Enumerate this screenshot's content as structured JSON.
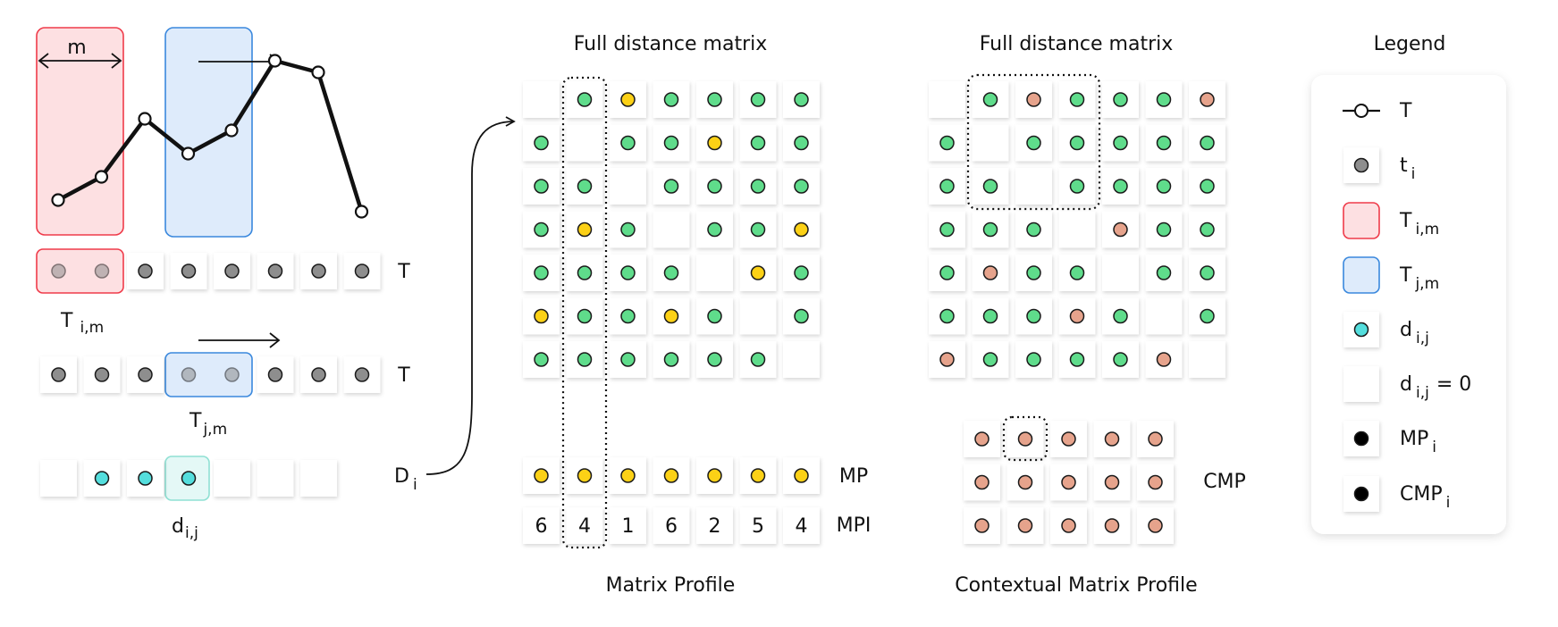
{
  "colors": {
    "green": "#5fdc8b",
    "yellow": "#fcd116",
    "salmon": "#e6a38c",
    "gray": "#8e8e8e",
    "cyan": "#54dedd",
    "red_fill": "#fde0e2",
    "red_border": "#ef3b4a",
    "blue_fill": "#deebfb",
    "blue_border": "#3a88dd",
    "teal_border": "#8fe0d3"
  },
  "left_panel": {
    "m_label": "m",
    "row1_label": "T",
    "row2_label": "T",
    "sub_tim": {
      "base": "T",
      "sub": "i,m"
    },
    "sub_tjm": {
      "base": "T",
      "sub": "j,m"
    },
    "sub_dij": {
      "base": "d",
      "sub": "i,j"
    },
    "di_label": {
      "base": "D",
      "sub": "i"
    },
    "series_values": [
      1,
      2,
      4.5,
      3,
      4,
      7,
      6.5,
      0.5
    ],
    "row1_cells": [
      "gray-faded",
      "gray-faded",
      "gray",
      "gray",
      "gray",
      "gray",
      "gray",
      "gray"
    ],
    "row2_cells": [
      "gray",
      "gray",
      "gray",
      "gray-faded",
      "gray-faded",
      "gray",
      "gray",
      "gray"
    ],
    "row3_cells": [
      "empty",
      "cyan",
      "cyan",
      "cyan",
      "empty",
      "empty",
      "empty"
    ]
  },
  "matrix_profile": {
    "title": "Full distance matrix",
    "caption": "Matrix Profile",
    "matrix": [
      [
        "E",
        "G",
        "Y",
        "G",
        "G",
        "G",
        "G"
      ],
      [
        "G",
        "E",
        "G",
        "G",
        "Y",
        "G",
        "G"
      ],
      [
        "G",
        "G",
        "E",
        "G",
        "G",
        "G",
        "G"
      ],
      [
        "G",
        "Y",
        "G",
        "E",
        "G",
        "G",
        "Y"
      ],
      [
        "G",
        "G",
        "G",
        "G",
        "E",
        "Y",
        "G"
      ],
      [
        "Y",
        "G",
        "G",
        "Y",
        "G",
        "E",
        "G"
      ],
      [
        "G",
        "G",
        "G",
        "G",
        "G",
        "G",
        "E"
      ]
    ],
    "mp_label": "MP",
    "mpi_label": "MPI",
    "mp_row": [
      "Y",
      "Y",
      "Y",
      "Y",
      "Y",
      "Y",
      "Y"
    ],
    "mpi_values": [
      "6",
      "4",
      "1",
      "6",
      "2",
      "5",
      "4"
    ]
  },
  "contextual_profile": {
    "title": "Full distance matrix",
    "caption": "Contextual Matrix Profile",
    "matrix": [
      [
        "E",
        "G",
        "S",
        "G",
        "G",
        "G",
        "S"
      ],
      [
        "G",
        "E",
        "G",
        "G",
        "G",
        "G",
        "G"
      ],
      [
        "G",
        "G",
        "E",
        "G",
        "G",
        "G",
        "G"
      ],
      [
        "G",
        "G",
        "G",
        "E",
        "S",
        "G",
        "G"
      ],
      [
        "G",
        "S",
        "G",
        "G",
        "E",
        "G",
        "G"
      ],
      [
        "G",
        "G",
        "G",
        "S",
        "G",
        "E",
        "G"
      ],
      [
        "S",
        "G",
        "G",
        "G",
        "G",
        "S",
        "E"
      ]
    ],
    "cmp_label": "CMP",
    "cmp_grid": [
      [
        "S",
        "S",
        "S",
        "S",
        "S"
      ],
      [
        "S",
        "S",
        "S",
        "S",
        "S"
      ],
      [
        "S",
        "S",
        "S",
        "S",
        "S"
      ]
    ]
  },
  "legend": {
    "title": "Legend",
    "items": [
      {
        "kind": "series",
        "base": "T",
        "sub": ""
      },
      {
        "kind": "gray",
        "base": "t",
        "sub": "i"
      },
      {
        "kind": "red-box",
        "base": "T",
        "sub": "i,m"
      },
      {
        "kind": "blue-box",
        "base": "T",
        "sub": "j,m"
      },
      {
        "kind": "cyan",
        "base": "d",
        "sub": "i,j"
      },
      {
        "kind": "empty",
        "base": "d",
        "sub": "i,j",
        "suffix": "= 0"
      },
      {
        "kind": "yellow",
        "base": "MP",
        "sub": "i"
      },
      {
        "kind": "salmon",
        "base": "CMP",
        "sub": "i"
      }
    ]
  }
}
